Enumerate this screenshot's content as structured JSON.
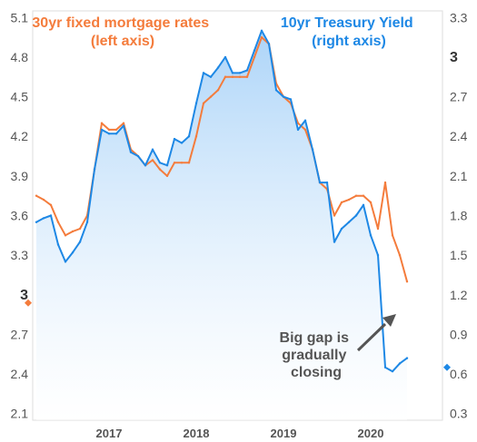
{
  "chart_data": {
    "type": "line",
    "x_range": [
      "2016-03",
      "2020-06"
    ],
    "x_ticks": [
      "2017",
      "2018",
      "2019",
      "2020"
    ],
    "y_left": {
      "ticks": [
        "5.1",
        "4.8",
        "4.5",
        "4.2",
        "3.9",
        "3.6",
        "3.3",
        "3",
        "2.7",
        "2.4",
        "2.1"
      ],
      "range": [
        2.05,
        5.15
      ],
      "highlight": "3"
    },
    "y_right": {
      "ticks": [
        "3.3",
        "3",
        "2.7",
        "2.4",
        "2.1",
        "1.8",
        "1.5",
        "1.2",
        "0.9",
        "0.6",
        "0.3"
      ],
      "range": [
        0.25,
        3.35
      ],
      "highlight": "3"
    },
    "series": [
      {
        "name": "10yr Treasury Yield",
        "axis": "right",
        "color": "#1e88e5",
        "fill": true,
        "points": [
          [
            "2016-03",
            1.75
          ],
          [
            "2016-04",
            1.78
          ],
          [
            "2016-05",
            1.8
          ],
          [
            "2016-06",
            1.58
          ],
          [
            "2016-07",
            1.45
          ],
          [
            "2016-08",
            1.52
          ],
          [
            "2016-09",
            1.6
          ],
          [
            "2016-10",
            1.75
          ],
          [
            "2016-11",
            2.15
          ],
          [
            "2016-12",
            2.45
          ],
          [
            "2017-01",
            2.42
          ],
          [
            "2017-02",
            2.42
          ],
          [
            "2017-03",
            2.48
          ],
          [
            "2017-04",
            2.28
          ],
          [
            "2017-05",
            2.25
          ],
          [
            "2017-06",
            2.18
          ],
          [
            "2017-07",
            2.3
          ],
          [
            "2017-08",
            2.2
          ],
          [
            "2017-09",
            2.18
          ],
          [
            "2017-10",
            2.38
          ],
          [
            "2017-11",
            2.35
          ],
          [
            "2017-12",
            2.4
          ],
          [
            "2018-01",
            2.65
          ],
          [
            "2018-02",
            2.88
          ],
          [
            "2018-03",
            2.85
          ],
          [
            "2018-04",
            2.92
          ],
          [
            "2018-05",
            3.0
          ],
          [
            "2018-06",
            2.88
          ],
          [
            "2018-07",
            2.88
          ],
          [
            "2018-08",
            2.9
          ],
          [
            "2018-09",
            3.05
          ],
          [
            "2018-10",
            3.2
          ],
          [
            "2018-11",
            3.1
          ],
          [
            "2018-12",
            2.75
          ],
          [
            "2019-01",
            2.7
          ],
          [
            "2019-02",
            2.68
          ],
          [
            "2019-03",
            2.45
          ],
          [
            "2019-04",
            2.52
          ],
          [
            "2019-05",
            2.3
          ],
          [
            "2019-06",
            2.05
          ],
          [
            "2019-07",
            2.05
          ],
          [
            "2019-08",
            1.6
          ],
          [
            "2019-09",
            1.7
          ],
          [
            "2019-10",
            1.75
          ],
          [
            "2019-11",
            1.8
          ],
          [
            "2019-12",
            1.88
          ],
          [
            "2020-01",
            1.65
          ],
          [
            "2020-02",
            1.5
          ],
          [
            "2020-03",
            0.65
          ],
          [
            "2020-04",
            0.62
          ],
          [
            "2020-05",
            0.68
          ],
          [
            "2020-06",
            0.72
          ]
        ]
      },
      {
        "name": "30yr fixed mortgage rates",
        "axis": "left",
        "color": "#f47c3c",
        "fill": false,
        "points": [
          [
            "2016-03",
            3.75
          ],
          [
            "2016-04",
            3.72
          ],
          [
            "2016-05",
            3.68
          ],
          [
            "2016-06",
            3.55
          ],
          [
            "2016-07",
            3.45
          ],
          [
            "2016-08",
            3.48
          ],
          [
            "2016-09",
            3.5
          ],
          [
            "2016-10",
            3.6
          ],
          [
            "2016-11",
            3.95
          ],
          [
            "2016-12",
            4.3
          ],
          [
            "2017-01",
            4.25
          ],
          [
            "2017-02",
            4.25
          ],
          [
            "2017-03",
            4.3
          ],
          [
            "2017-04",
            4.1
          ],
          [
            "2017-05",
            4.05
          ],
          [
            "2017-06",
            3.98
          ],
          [
            "2017-07",
            4.02
          ],
          [
            "2017-08",
            3.95
          ],
          [
            "2017-09",
            3.9
          ],
          [
            "2017-10",
            4.0
          ],
          [
            "2017-11",
            4.0
          ],
          [
            "2017-12",
            4.0
          ],
          [
            "2018-01",
            4.2
          ],
          [
            "2018-02",
            4.45
          ],
          [
            "2018-03",
            4.5
          ],
          [
            "2018-04",
            4.55
          ],
          [
            "2018-05",
            4.65
          ],
          [
            "2018-06",
            4.65
          ],
          [
            "2018-07",
            4.65
          ],
          [
            "2018-08",
            4.65
          ],
          [
            "2018-09",
            4.8
          ],
          [
            "2018-10",
            4.95
          ],
          [
            "2018-11",
            4.9
          ],
          [
            "2018-12",
            4.6
          ],
          [
            "2019-01",
            4.5
          ],
          [
            "2019-02",
            4.45
          ],
          [
            "2019-03",
            4.3
          ],
          [
            "2019-04",
            4.25
          ],
          [
            "2019-05",
            4.1
          ],
          [
            "2019-06",
            3.85
          ],
          [
            "2019-07",
            3.8
          ],
          [
            "2019-08",
            3.6
          ],
          [
            "2019-09",
            3.7
          ],
          [
            "2019-10",
            3.72
          ],
          [
            "2019-11",
            3.75
          ],
          [
            "2019-12",
            3.75
          ],
          [
            "2020-01",
            3.7
          ],
          [
            "2020-02",
            3.5
          ],
          [
            "2020-03",
            3.85
          ],
          [
            "2020-04",
            3.45
          ],
          [
            "2020-05",
            3.3
          ],
          [
            "2020-06",
            3.1
          ]
        ]
      }
    ],
    "legend": [
      {
        "text": "30yr fixed mortgage rates",
        "sub": "(left axis)",
        "color": "#f47c3c",
        "position": "top-left"
      },
      {
        "text": "10yr Treasury Yield",
        "sub": "(right axis)",
        "color": "#1e88e5",
        "position": "top-right"
      }
    ],
    "annotation": {
      "lines": [
        "Big gap is",
        "gradually",
        "closing"
      ],
      "arrow_color": "#555555"
    },
    "grid": false
  }
}
